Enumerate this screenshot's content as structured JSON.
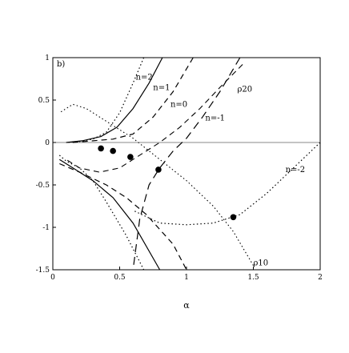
{
  "chart_data": {
    "type": "line",
    "panel_label": "b)",
    "xlabel": "α",
    "ylabel": "",
    "xlim": [
      0,
      2
    ],
    "ylim": [
      -1.5,
      1
    ],
    "x_ticks": [
      0,
      0.5,
      1,
      1.5,
      2
    ],
    "x_tick_labels": [
      "0",
      "0.5",
      "1",
      "1.5",
      "2"
    ],
    "y_ticks": [
      1,
      0.5,
      0,
      -0.5,
      -1,
      -1.5
    ],
    "y_tick_labels": [
      "1",
      "0.5",
      "0",
      "-0.5",
      "-1",
      "-1.5"
    ],
    "grid": false,
    "reference_line_y": 0,
    "series": [
      {
        "name": "n=2",
        "label_at": [
          0.62,
          0.74
        ],
        "style": "dotted",
        "points": [
          [
            0.68,
            1.0
          ],
          [
            0.6,
            0.7
          ],
          [
            0.5,
            0.35
          ],
          [
            0.4,
            0.12
          ],
          [
            0.3,
            0.04
          ],
          [
            0.2,
            0.01
          ],
          [
            0.1,
            0.0
          ]
        ],
        "points_lower": [
          [
            0.05,
            -0.15
          ],
          [
            0.1,
            -0.22
          ],
          [
            0.2,
            -0.3
          ],
          [
            0.3,
            -0.45
          ],
          [
            0.4,
            -0.7
          ],
          [
            0.55,
            -1.1
          ],
          [
            0.68,
            -1.5
          ]
        ]
      },
      {
        "name": "n=1",
        "label_at": [
          0.75,
          0.62
        ],
        "style": "solid",
        "points": [
          [
            0.82,
            1.0
          ],
          [
            0.72,
            0.7
          ],
          [
            0.6,
            0.4
          ],
          [
            0.48,
            0.18
          ],
          [
            0.36,
            0.07
          ],
          [
            0.22,
            0.02
          ],
          [
            0.1,
            0.0
          ]
        ],
        "points_lower": [
          [
            0.05,
            -0.2
          ],
          [
            0.15,
            -0.3
          ],
          [
            0.3,
            -0.45
          ],
          [
            0.45,
            -0.65
          ],
          [
            0.6,
            -0.95
          ],
          [
            0.8,
            -1.5
          ]
        ]
      },
      {
        "name": "n=0",
        "label_at": [
          0.88,
          0.42
        ],
        "style": "dashed",
        "points": [
          [
            1.05,
            1.0
          ],
          [
            0.9,
            0.6
          ],
          [
            0.75,
            0.3
          ],
          [
            0.6,
            0.1
          ],
          [
            0.45,
            0.04
          ],
          [
            0.3,
            0.02
          ],
          [
            0.15,
            0.0
          ]
        ],
        "points_lower": [
          [
            0.05,
            -0.25
          ],
          [
            0.2,
            -0.35
          ],
          [
            0.4,
            -0.5
          ],
          [
            0.55,
            -0.65
          ],
          [
            0.7,
            -0.85
          ],
          [
            0.9,
            -1.2
          ],
          [
            1.0,
            -1.5
          ]
        ]
      },
      {
        "name": "n=-1",
        "label_at": [
          1.14,
          0.26
        ],
        "style": "longdash",
        "points": [
          [
            1.4,
            1.0
          ],
          [
            1.25,
            0.6
          ],
          [
            1.12,
            0.3
          ],
          [
            1.0,
            0.05
          ],
          [
            0.9,
            -0.1
          ],
          [
            0.8,
            -0.3
          ],
          [
            0.72,
            -0.5
          ],
          [
            0.65,
            -0.9
          ],
          [
            0.6,
            -1.5
          ]
        ],
        "points_lower": []
      },
      {
        "name": "n=-2",
        "label_at": [
          1.74,
          -0.35
        ],
        "style": "dotted",
        "points": [
          [
            2.0,
            0.0
          ],
          [
            1.8,
            -0.3
          ],
          [
            1.6,
            -0.6
          ],
          [
            1.4,
            -0.85
          ],
          [
            1.2,
            -0.95
          ],
          [
            1.0,
            -0.97
          ],
          [
            0.8,
            -0.95
          ],
          [
            0.6,
            -0.8
          ]
        ],
        "points_lower": []
      }
    ],
    "rho_curves": [
      {
        "name": "ρ20",
        "label_at": [
          1.38,
          0.6
        ],
        "style": "dashed",
        "points": [
          [
            1.42,
            0.92
          ],
          [
            1.25,
            0.65
          ],
          [
            1.1,
            0.4
          ],
          [
            0.95,
            0.18
          ],
          [
            0.8,
            0.0
          ],
          [
            0.7,
            -0.1
          ],
          [
            0.6,
            -0.2
          ],
          [
            0.5,
            -0.3
          ],
          [
            0.35,
            -0.35
          ],
          [
            0.2,
            -0.3
          ],
          [
            0.1,
            -0.2
          ]
        ]
      },
      {
        "name": "ρ10",
        "label_at": [
          1.5,
          -1.45
        ],
        "style": "dotted",
        "points": [
          [
            1.5,
            -1.45
          ],
          [
            1.35,
            -1.05
          ],
          [
            1.2,
            -0.75
          ],
          [
            1.0,
            -0.45
          ],
          [
            0.8,
            -0.2
          ],
          [
            0.6,
            0.05
          ],
          [
            0.4,
            0.25
          ],
          [
            0.25,
            0.4
          ],
          [
            0.15,
            0.45
          ],
          [
            0.05,
            0.35
          ]
        ]
      }
    ],
    "markers": [
      {
        "x": 0.36,
        "y": -0.07
      },
      {
        "x": 0.45,
        "y": -0.1
      },
      {
        "x": 0.58,
        "y": -0.17
      },
      {
        "x": 0.79,
        "y": -0.32
      },
      {
        "x": 1.35,
        "y": -0.88
      }
    ]
  }
}
